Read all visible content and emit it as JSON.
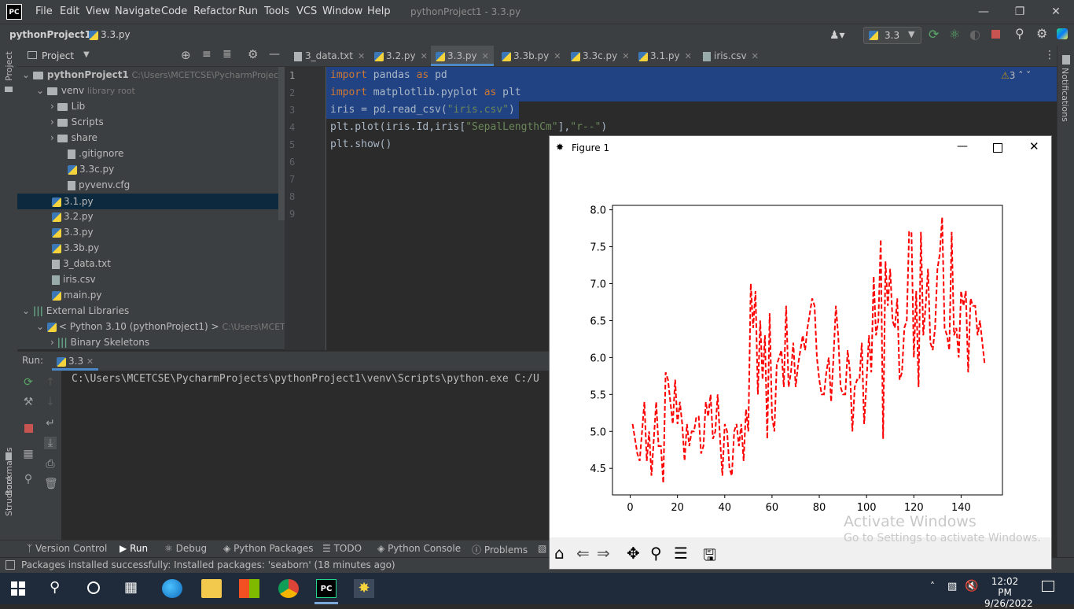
{
  "app": {
    "logo": "PC",
    "window_title": "pythonProject1 - 3.3.py",
    "menu": [
      "File",
      "Edit",
      "View",
      "Navigate",
      "Code",
      "Refactor",
      "Run",
      "Tools",
      "VCS",
      "Window",
      "Help"
    ]
  },
  "navbar": {
    "project": "pythonProject1",
    "file": "3.3.py",
    "run_config": "3.3"
  },
  "project_panel": {
    "title": "Project",
    "items": [
      {
        "label": "pythonProject1",
        "hint": "C:\\Users\\MCETCSE\\PycharmProjects\\p"
      },
      {
        "label": "venv",
        "hint": "library root"
      },
      {
        "label": "Lib"
      },
      {
        "label": "Scripts"
      },
      {
        "label": "share"
      },
      {
        "label": ".gitignore"
      },
      {
        "label": "3.3c.py"
      },
      {
        "label": "pyvenv.cfg"
      },
      {
        "label": "3.1.py"
      },
      {
        "label": "3.2.py"
      },
      {
        "label": "3.3.py"
      },
      {
        "label": "3.3b.py"
      },
      {
        "label": "3_data.txt"
      },
      {
        "label": "iris.csv"
      },
      {
        "label": "main.py"
      },
      {
        "label": "External Libraries"
      },
      {
        "label": "< Python 3.10 (pythonProject1) >",
        "hint": "C:\\Users\\MCETCSE"
      },
      {
        "label": "Binary Skeletons"
      }
    ]
  },
  "editor": {
    "tabs": [
      "3_data.txt",
      "3.2.py",
      "3.3.py",
      "3.3b.py",
      "3.3c.py",
      "3.1.py",
      "iris.csv"
    ],
    "active_tab": "3.3.py",
    "warnings": "3",
    "line_numbers": [
      "1",
      "2",
      "3",
      "4",
      "5",
      "6",
      "7",
      "8",
      "9"
    ],
    "code": {
      "l1_kw1": "import",
      "l1_mid": " pandas ",
      "l1_kw2": "as",
      "l1_end": " pd",
      "l2_kw1": "import",
      "l2_mid": " matplotlib.pyplot ",
      "l2_kw2": "as",
      "l2_end": " plt",
      "l3_a": "iris = pd.read_csv(",
      "l3_str": "\"iris.csv\"",
      "l3_b": ")",
      "l4_a": "plt.plot(iris.Id,iris[",
      "l4_str1": "\"SepalLengthCm\"",
      "l4_b": "],",
      "l4_str2": "\"r--\"",
      "l4_c": ")",
      "l5": "plt.show()"
    }
  },
  "run_panel": {
    "label": "Run:",
    "tab": "3.3",
    "output": "C:\\Users\\MCETCSE\\PycharmProjects\\pythonProject1\\venv\\Scripts\\python.exe C:/U"
  },
  "tool_tabs": [
    "Version Control",
    "Run",
    "Debug",
    "Python Packages",
    "TODO",
    "Python Console",
    "Problems"
  ],
  "status": "Packages installed successfully: Installed packages: 'seaborn' (18 minutes ago)",
  "side_labels": {
    "project": "Project",
    "bookmarks": "Bookmarks",
    "structure": "Structure",
    "notifications": "Notifications"
  },
  "figure": {
    "title": "Figure 1",
    "watermark_line1": "Activate Windows",
    "watermark_line2": "Go to Settings to activate Windows."
  },
  "chart_data": {
    "type": "line",
    "title": "",
    "xlabel": "",
    "ylabel": "",
    "line_style": "dashed",
    "color": "#ff0000",
    "xlim": [
      -7.5,
      157.5
    ],
    "ylim": [
      4.14,
      8.06
    ],
    "xticks": [
      0,
      20,
      40,
      60,
      80,
      100,
      120,
      140
    ],
    "yticks": [
      4.5,
      5.0,
      5.5,
      6.0,
      6.5,
      7.0,
      7.5,
      8.0
    ],
    "x_start": 1,
    "values": [
      5.1,
      4.9,
      4.7,
      4.6,
      5.0,
      5.4,
      4.6,
      5.0,
      4.4,
      4.9,
      5.4,
      4.8,
      4.8,
      4.3,
      5.8,
      5.7,
      5.4,
      5.1,
      5.7,
      5.1,
      5.4,
      5.1,
      4.6,
      5.1,
      4.8,
      5.0,
      5.0,
      5.2,
      5.2,
      4.7,
      4.8,
      5.4,
      5.2,
      5.5,
      4.9,
      5.0,
      5.5,
      4.9,
      4.4,
      5.1,
      5.0,
      4.5,
      4.4,
      5.0,
      5.1,
      4.8,
      5.1,
      4.6,
      5.3,
      5.0,
      7.0,
      6.4,
      6.9,
      5.5,
      6.5,
      5.7,
      6.3,
      4.9,
      6.6,
      5.2,
      5.0,
      5.9,
      6.0,
      6.1,
      5.6,
      6.7,
      5.6,
      5.8,
      6.2,
      5.6,
      5.9,
      6.1,
      6.3,
      6.1,
      6.4,
      6.6,
      6.8,
      6.7,
      6.0,
      5.7,
      5.5,
      5.5,
      5.8,
      6.0,
      5.4,
      6.0,
      6.7,
      6.3,
      5.6,
      5.5,
      5.5,
      6.1,
      5.8,
      5.0,
      5.6,
      5.7,
      5.7,
      6.2,
      5.1,
      5.7,
      6.3,
      5.8,
      7.1,
      6.3,
      6.5,
      7.6,
      4.9,
      7.3,
      6.7,
      7.2,
      6.5,
      6.4,
      6.8,
      5.7,
      5.8,
      6.4,
      6.5,
      7.7,
      7.7,
      6.0,
      6.9,
      5.6,
      7.7,
      6.3,
      6.7,
      7.2,
      6.2,
      6.1,
      6.4,
      7.2,
      7.4,
      7.9,
      6.4,
      6.3,
      6.1,
      7.7,
      6.3,
      6.4,
      6.0,
      6.9,
      6.7,
      6.9,
      5.8,
      6.8,
      6.7,
      6.7,
      6.3,
      6.5,
      6.2,
      5.9
    ]
  },
  "taskbar": {
    "time": "12:02 PM",
    "date": "9/26/2022"
  },
  "colors": {
    "ide_bg": "#2b2b2b",
    "panel_bg": "#3c3f41",
    "selection": "#214283",
    "accent": "#4a88c7",
    "plot_line": "#ff0000"
  }
}
